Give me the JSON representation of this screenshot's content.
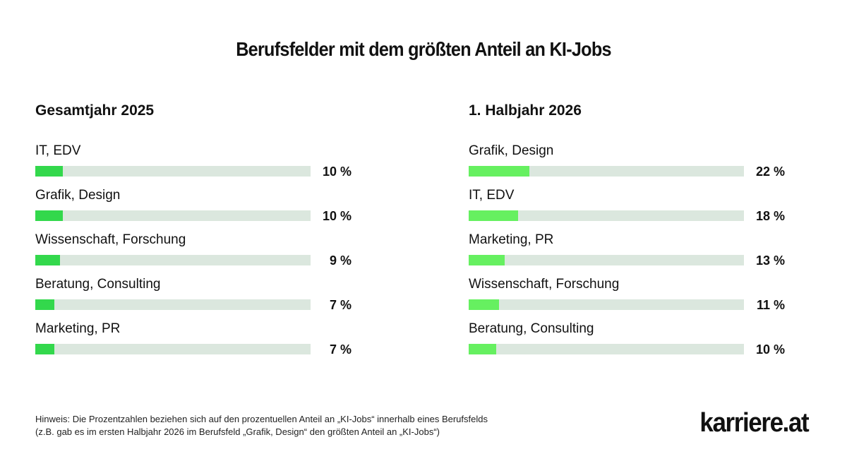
{
  "title": "Berufsfelder mit dem größten Anteil an KI-Jobs",
  "colors": {
    "track": "#dbe7de",
    "fill_2025": "#33d84c",
    "fill_2026": "#66f060"
  },
  "chart_data": [
    {
      "type": "bar",
      "orientation": "horizontal",
      "title": "Gesamtjahr 2025",
      "categories": [
        "IT, EDV",
        "Grafik, Design",
        "Wissenschaft, Forschung",
        "Beratung, Consulting",
        "Marketing, PR"
      ],
      "values": [
        10,
        10,
        9,
        7,
        7
      ],
      "value_labels": [
        "10 %",
        "10 %",
        "9 %",
        "7 %",
        "7 %"
      ],
      "unit": "%",
      "xlim": [
        0,
        100
      ]
    },
    {
      "type": "bar",
      "orientation": "horizontal",
      "title": "1. Halbjahr 2026",
      "categories": [
        "Grafik, Design",
        "IT, EDV",
        "Marketing, PR",
        "Wissenschaft, Forschung",
        "Beratung, Consulting"
      ],
      "values": [
        22,
        18,
        13,
        11,
        10
      ],
      "value_labels": [
        "22 %",
        "18 %",
        "13 %",
        "11 %",
        "10 %"
      ],
      "unit": "%",
      "xlim": [
        0,
        100
      ]
    }
  ],
  "footnote": {
    "line1": "Hinweis: Die Prozentzahlen beziehen sich auf den prozentuellen Anteil an „KI-Jobs“ innerhalb eines Berufsfelds",
    "line2": "(z.B. gab es im ersten Halbjahr 2026 im Berufsfeld „Grafik, Design“ den größten Anteil an „KI-Jobs“)"
  },
  "logo": "karriere.at"
}
